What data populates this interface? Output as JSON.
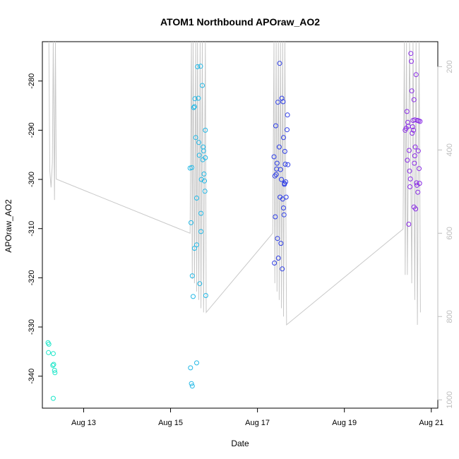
{
  "chart_data": {
    "type": "scatter",
    "title": "ATOM1 Northbound APOraw_AO2",
    "xlabel": "Date",
    "ylabel": "APOraw_AO2",
    "x_ticks": [
      "Aug 13",
      "Aug 15",
      "Aug 17",
      "Aug 19",
      "Aug 21"
    ],
    "x_tick_days": [
      13,
      15,
      17,
      19,
      21
    ],
    "xlim": [
      12.05,
      21.15
    ],
    "ylim": [
      -346.5,
      -272.0
    ],
    "y_ticks": [
      -280,
      -290,
      -300,
      -310,
      -320,
      -330,
      -340
    ],
    "y2_ticks": [
      200,
      400,
      600,
      800,
      1000
    ],
    "y2lim": [
      1020,
      140
    ],
    "grid": false,
    "depth_trace": {
      "color": "#c8c8c8",
      "points": [
        [
          12.2,
          140
        ],
        [
          12.22,
          450
        ],
        [
          12.25,
          490
        ],
        [
          12.28,
          430
        ],
        [
          12.3,
          140
        ],
        [
          12.33,
          520
        ],
        [
          12.35,
          140
        ],
        [
          12.37,
          470
        ],
        [
          15.45,
          600
        ],
        [
          15.48,
          140
        ],
        [
          15.5,
          710
        ],
        [
          15.52,
          140
        ],
        [
          15.55,
          720
        ],
        [
          15.58,
          140
        ],
        [
          15.6,
          740
        ],
        [
          15.62,
          140
        ],
        [
          15.65,
          760
        ],
        [
          15.68,
          140
        ],
        [
          15.7,
          780
        ],
        [
          15.73,
          140
        ],
        [
          15.76,
          790
        ],
        [
          15.8,
          140
        ],
        [
          15.82,
          790
        ],
        [
          17.35,
          600
        ],
        [
          17.38,
          140
        ],
        [
          17.4,
          720
        ],
        [
          17.43,
          140
        ],
        [
          17.45,
          740
        ],
        [
          17.48,
          140
        ],
        [
          17.5,
          760
        ],
        [
          17.53,
          140
        ],
        [
          17.55,
          780
        ],
        [
          17.58,
          140
        ],
        [
          17.6,
          800
        ],
        [
          17.63,
          140
        ],
        [
          17.67,
          820
        ],
        [
          20.35,
          590
        ],
        [
          20.38,
          140
        ],
        [
          20.4,
          700
        ],
        [
          20.43,
          140
        ],
        [
          20.45,
          700
        ],
        [
          20.5,
          140
        ],
        [
          20.55,
          720
        ],
        [
          20.58,
          140
        ],
        [
          20.62,
          760
        ],
        [
          20.65,
          140
        ],
        [
          20.68,
          820
        ],
        [
          20.72,
          140
        ],
        [
          20.75,
          790
        ]
      ]
    },
    "series": [
      {
        "color": "#1ae6c8",
        "points": [
          [
            12.18,
            -333.2
          ],
          [
            12.2,
            -333.5
          ],
          [
            12.19,
            -335.2
          ],
          [
            12.3,
            -335.4
          ],
          [
            12.29,
            -337.8
          ],
          [
            12.31,
            -337.6
          ],
          [
            12.33,
            -338.8
          ],
          [
            12.34,
            -339.3
          ],
          [
            12.3,
            -344.5
          ]
        ]
      },
      {
        "color": "#22b8e6",
        "points": [
          [
            15.47,
            -308.8
          ],
          [
            15.45,
            -297.7
          ],
          [
            15.49,
            -297.6
          ],
          [
            15.5,
            -319.6
          ],
          [
            15.52,
            -323.8
          ],
          [
            15.55,
            -314.0
          ],
          [
            15.53,
            -285.4
          ],
          [
            15.56,
            -283.6
          ],
          [
            15.58,
            -291.5
          ],
          [
            15.6,
            -313.3
          ],
          [
            15.62,
            -277.1
          ],
          [
            15.64,
            -283.5
          ],
          [
            15.65,
            -292.5
          ],
          [
            15.66,
            -295.1
          ],
          [
            15.67,
            -321.2
          ],
          [
            15.69,
            -277.0
          ],
          [
            15.7,
            -306.9
          ],
          [
            15.7,
            -310.6
          ],
          [
            15.71,
            -300.0
          ],
          [
            15.73,
            -280.9
          ],
          [
            15.74,
            -296.0
          ],
          [
            15.75,
            -293.4
          ],
          [
            15.76,
            -294.2
          ],
          [
            15.77,
            -298.9
          ],
          [
            15.78,
            -300.3
          ],
          [
            15.79,
            -302.4
          ],
          [
            15.8,
            -290.0
          ],
          [
            15.8,
            -295.6
          ],
          [
            15.81,
            -323.6
          ],
          [
            15.6,
            -303.8
          ],
          [
            15.55,
            -285.2
          ],
          [
            15.46,
            -338.3
          ],
          [
            15.48,
            -341.5
          ],
          [
            15.5,
            -342.0
          ],
          [
            15.6,
            -337.3
          ]
        ]
      },
      {
        "color": "#2e3ee6",
        "points": [
          [
            17.38,
            -295.4
          ],
          [
            17.39,
            -317.0
          ],
          [
            17.4,
            -299.3
          ],
          [
            17.41,
            -307.6
          ],
          [
            17.42,
            -289.1
          ],
          [
            17.44,
            -297.9
          ],
          [
            17.45,
            -296.7
          ],
          [
            17.46,
            -312.0
          ],
          [
            17.47,
            -284.3
          ],
          [
            17.48,
            -316.0
          ],
          [
            17.5,
            -293.4
          ],
          [
            17.51,
            -276.4
          ],
          [
            17.52,
            -303.6
          ],
          [
            17.53,
            -298.0
          ],
          [
            17.54,
            -313.0
          ],
          [
            17.55,
            -300.0
          ],
          [
            17.56,
            -283.5
          ],
          [
            17.57,
            -318.2
          ],
          [
            17.58,
            -304.0
          ],
          [
            17.59,
            -284.2
          ],
          [
            17.6,
            -291.5
          ],
          [
            17.61,
            -307.2
          ],
          [
            17.62,
            -301.0
          ],
          [
            17.63,
            -294.3
          ],
          [
            17.64,
            -296.9
          ],
          [
            17.65,
            -300.5
          ],
          [
            17.66,
            -303.6
          ],
          [
            17.68,
            -289.9
          ],
          [
            17.69,
            -286.9
          ],
          [
            17.43,
            -299.0
          ],
          [
            17.6,
            -305.8
          ],
          [
            17.62,
            -300.8
          ],
          [
            17.7,
            -297.0
          ]
        ]
      },
      {
        "color": "#8a2be6",
        "points": [
          [
            20.4,
            -290.0
          ],
          [
            20.42,
            -289.6
          ],
          [
            20.44,
            -286.2
          ],
          [
            20.45,
            -296.1
          ],
          [
            20.46,
            -288.4
          ],
          [
            20.47,
            -289.2
          ],
          [
            20.48,
            -309.1
          ],
          [
            20.49,
            -294.1
          ],
          [
            20.5,
            -298.3
          ],
          [
            20.51,
            -301.5
          ],
          [
            20.52,
            -299.9
          ],
          [
            20.53,
            -274.4
          ],
          [
            20.54,
            -276.0
          ],
          [
            20.55,
            -282.0
          ],
          [
            20.56,
            -290.6
          ],
          [
            20.57,
            -289.3
          ],
          [
            20.58,
            -288.0
          ],
          [
            20.59,
            -290.0
          ],
          [
            20.6,
            -283.8
          ],
          [
            20.61,
            -296.7
          ],
          [
            20.62,
            -295.2
          ],
          [
            20.63,
            -293.4
          ],
          [
            20.64,
            -306.0
          ],
          [
            20.65,
            -278.7
          ],
          [
            20.66,
            -300.7
          ],
          [
            20.67,
            -301.2
          ],
          [
            20.68,
            -288.0
          ],
          [
            20.69,
            -302.6
          ],
          [
            20.7,
            -294.2
          ],
          [
            20.71,
            -288.1
          ],
          [
            20.72,
            -297.8
          ],
          [
            20.73,
            -300.8
          ],
          [
            20.74,
            -288.2
          ],
          [
            20.6,
            -305.6
          ],
          [
            20.62,
            -287.9
          ]
        ]
      }
    ]
  }
}
